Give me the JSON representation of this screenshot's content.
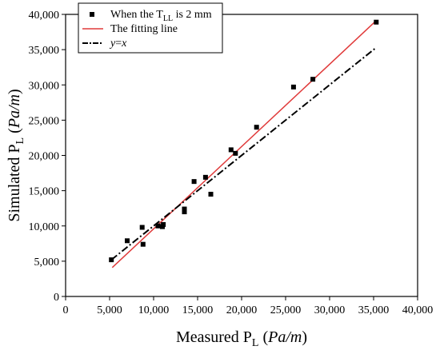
{
  "chart_data": {
    "type": "scatter",
    "title": "",
    "xlabel": {
      "main": "Measured P",
      "sub": "L",
      "unit": "Pa/m"
    },
    "ylabel": {
      "main": "Simulated P",
      "sub": "L",
      "unit": "Pa/m"
    },
    "xlim": [
      0,
      40000
    ],
    "ylim": [
      0,
      40000
    ],
    "xticks": [
      0,
      5000,
      10000,
      15000,
      20000,
      25000,
      30000,
      35000,
      40000
    ],
    "yticks": [
      0,
      5000,
      10000,
      15000,
      20000,
      25000,
      30000,
      35000,
      40000
    ],
    "xtick_labels": [
      "0",
      "5,000",
      "10,000",
      "15,000",
      "20,000",
      "25,000",
      "30,000",
      "35,000",
      "40,000"
    ],
    "ytick_labels": [
      "0",
      "5,000",
      "10,000",
      "15,000",
      "20,000",
      "25,000",
      "30,000",
      "35,000",
      "40,000"
    ],
    "grid": false,
    "legend_position": "top-left",
    "series": [
      {
        "name": "When the T_LL is 2 mm",
        "legend_label": {
          "pre": "When the T",
          "sub": "LL",
          "post": " is 2 mm"
        },
        "kind": "points",
        "marker": "square",
        "color": "#000000",
        "x": [
          5200,
          7000,
          8700,
          8800,
          10500,
          11000,
          11100,
          13500,
          13500,
          14600,
          15900,
          16500,
          18800,
          19300,
          21700,
          25900,
          28100,
          35300
        ],
        "y": [
          5200,
          7900,
          9800,
          7400,
          10000,
          9900,
          10200,
          12400,
          12000,
          16300,
          16900,
          14500,
          20800,
          20300,
          24000,
          29700,
          30800,
          38900
        ]
      },
      {
        "name": "The fitting line",
        "legend_label": {
          "pre": "The fitting line",
          "sub": "",
          "post": ""
        },
        "kind": "line",
        "dash": "solid",
        "color": "#e03a3a",
        "x": [
          5300,
          35200
        ],
        "y": [
          4100,
          39000
        ]
      },
      {
        "name": "y=x",
        "legend_label": {
          "pre": "y=x",
          "sub": "",
          "post": ""
        },
        "kind": "line",
        "dash": "dashdot",
        "color": "#000000",
        "x": [
          5200,
          35200
        ],
        "y": [
          5200,
          35200
        ]
      }
    ]
  }
}
